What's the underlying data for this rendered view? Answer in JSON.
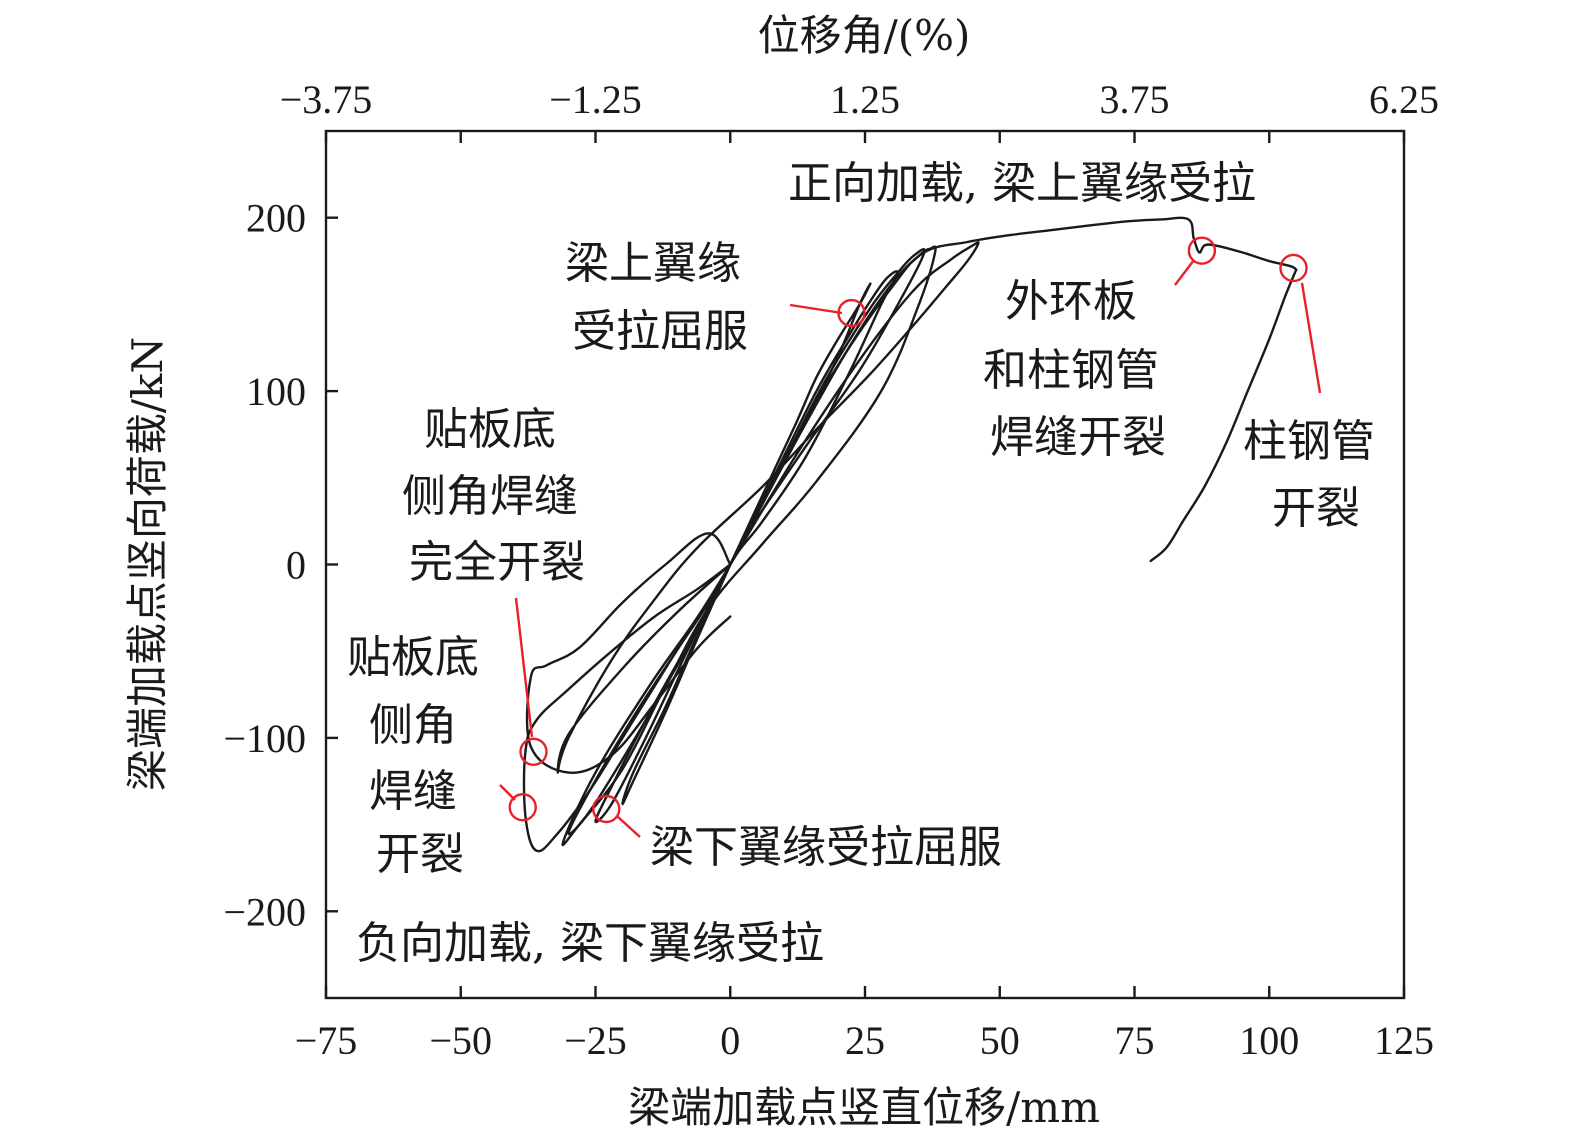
{
  "chart_data": {
    "type": "line",
    "title": "",
    "xlabel": "梁端加载点竖直位移/mm",
    "ylabel": "梁端加载点竖向荷载/kN",
    "x2label": "位移角/(%)",
    "xlim": [
      -75,
      125
    ],
    "ylim": [
      -250,
      250
    ],
    "x_ticks": [
      -75,
      -50,
      -25,
      0,
      25,
      50,
      75,
      100,
      125
    ],
    "x_tick_labels": [
      "−75",
      "−50",
      "−25",
      "0",
      "25",
      "50",
      "75",
      "100",
      "125"
    ],
    "y_ticks": [
      -200,
      -100,
      0,
      100,
      200
    ],
    "y_tick_labels": [
      "−200",
      "−100",
      "0",
      "100",
      "200"
    ],
    "x2_ticks": [
      -75,
      -50,
      -25,
      0,
      25,
      50,
      75,
      100,
      125
    ],
    "x2_tick_labels": [
      "−3.75",
      "",
      "−1.25",
      "",
      "1.25",
      "",
      "3.75",
      "",
      "6.25"
    ],
    "grid": false,
    "series": [
      {
        "x": [
          0,
          6,
          12,
          16,
          20,
          24,
          26,
          24,
          20,
          14,
          6,
          0,
          -6,
          -12,
          -18,
          -20,
          -18,
          -12,
          -6,
          0
        ],
        "y": [
          0,
          40,
          80,
          108,
          130,
          150,
          162,
          150,
          120,
          82,
          35,
          0,
          -40,
          -82,
          -120,
          -138,
          -125,
          -85,
          -42,
          0
        ]
      },
      {
        "x": [
          0,
          8,
          16,
          22,
          26,
          29,
          31,
          28,
          22,
          14,
          6,
          0,
          -8,
          -16,
          -22,
          -25,
          -22,
          -14,
          -6,
          0
        ],
        "y": [
          0,
          50,
          100,
          132,
          152,
          165,
          168,
          150,
          110,
          62,
          25,
          0,
          -50,
          -102,
          -138,
          -148,
          -128,
          -80,
          -36,
          0
        ]
      },
      {
        "x": [
          0,
          10,
          18,
          26,
          31,
          34,
          36,
          32,
          24,
          14,
          4,
          0,
          -8,
          -18,
          -26,
          -30,
          -26,
          -18,
          -10,
          -4,
          0
        ],
        "y": [
          0,
          60,
          108,
          148,
          168,
          178,
          180,
          155,
          112,
          68,
          22,
          0,
          -48,
          -102,
          -142,
          -155,
          -130,
          -88,
          -50,
          -22,
          0
        ]
      },
      {
        "x": [
          0,
          12,
          22,
          30,
          35,
          37,
          38,
          35,
          28,
          16,
          6,
          -4,
          -12,
          -20,
          -28,
          -31,
          -25,
          -15,
          -6,
          0
        ],
        "y": [
          0,
          70,
          125,
          162,
          178,
          182,
          180,
          150,
          100,
          48,
          12,
          -25,
          -70,
          -118,
          -150,
          -160,
          -120,
          -70,
          -30,
          0
        ]
      },
      {
        "x": [
          0,
          12,
          24,
          34,
          41,
          45,
          46,
          44,
          40,
          34,
          26,
          16,
          6,
          -6,
          -14,
          -22,
          -30,
          -32,
          -30,
          -20,
          -10,
          0
        ],
        "y": [
          0,
          62,
          118,
          158,
          176,
          184,
          185,
          175,
          160,
          138,
          110,
          78,
          45,
          10,
          -20,
          -55,
          -100,
          -120,
          -98,
          -60,
          -28,
          0
        ]
      },
      {
        "x": [
          0,
          -6,
          -14,
          -22,
          -30,
          -36,
          -38,
          -38,
          -36,
          -32,
          -26,
          -20,
          -14,
          -8,
          -2,
          0
        ],
        "y": [
          0,
          -14,
          -30,
          -50,
          -72,
          -90,
          -108,
          -145,
          -165,
          -155,
          -130,
          -100,
          -70,
          -40,
          -12,
          0
        ]
      },
      {
        "x": [
          0,
          -4,
          -12,
          -20,
          -28,
          -34,
          -37,
          -37,
          -30,
          -22,
          -14,
          -6,
          0
        ],
        "y": [
          0,
          18,
          0,
          -22,
          -48,
          -58,
          -65,
          -105,
          -120,
          -110,
          -80,
          -48,
          -30
        ]
      },
      {
        "x": [
          0,
          10,
          20,
          30,
          36,
          44,
          52,
          60,
          68,
          74,
          80,
          85,
          86,
          87,
          88,
          90,
          95,
          100,
          104,
          105
        ],
        "y": [
          0,
          60,
          115,
          160,
          180,
          186,
          190,
          193,
          196,
          198,
          199,
          199,
          188,
          180,
          184,
          184,
          180,
          175,
          172,
          170
        ]
      },
      {
        "x": [
          105,
          103,
          100,
          96,
          92,
          88,
          84,
          81,
          78
        ],
        "y": [
          170,
          155,
          130,
          100,
          70,
          45,
          25,
          10,
          2
        ]
      }
    ],
    "markers": [
      {
        "x": 22.5,
        "y": 145
      },
      {
        "x": 87.5,
        "y": 181
      },
      {
        "x": 104.5,
        "y": 171
      },
      {
        "x": -36.5,
        "y": -108
      },
      {
        "x": -38.5,
        "y": -140
      },
      {
        "x": -23,
        "y": -141
      }
    ],
    "annotations": [
      {
        "id": "pos_loading",
        "lines": [
          "正向加载, 梁上翼缘受拉"
        ]
      },
      {
        "id": "neg_loading",
        "lines": [
          "负向加载, 梁下翼缘受拉"
        ]
      },
      {
        "id": "top_flange_yield",
        "lines": [
          "梁上翼缘",
          "受拉屈服"
        ]
      },
      {
        "id": "outer_ring_crack",
        "lines": [
          "外环板",
          "和柱钢管",
          "焊缝开裂"
        ]
      },
      {
        "id": "column_tube_crack",
        "lines": [
          "柱钢管",
          "开裂"
        ]
      },
      {
        "id": "plate_full_crack",
        "lines": [
          "贴板底",
          "侧角焊缝",
          "完全开裂"
        ]
      },
      {
        "id": "plate_crack",
        "lines": [
          "贴板底",
          "侧角",
          "焊缝",
          "开裂"
        ]
      },
      {
        "id": "bottom_flange_yield",
        "lines": [
          "梁下翼缘受拉屈服"
        ]
      }
    ]
  }
}
